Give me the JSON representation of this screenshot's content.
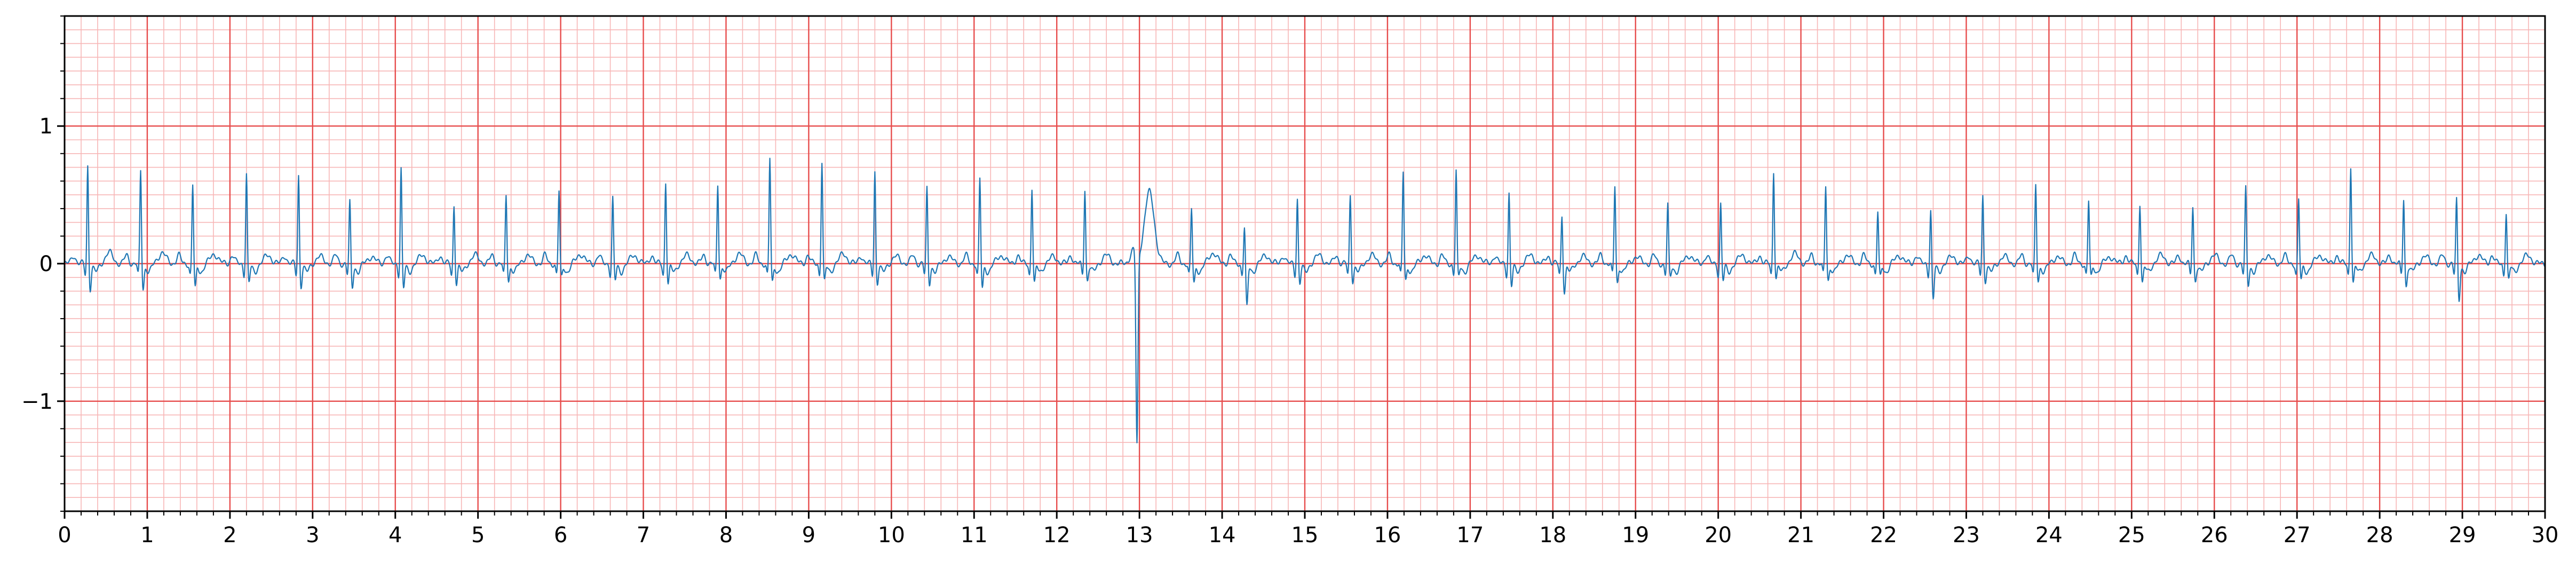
{
  "chart_data": {
    "type": "line",
    "title": "",
    "xlabel": "",
    "ylabel": "",
    "xlim": [
      0,
      30
    ],
    "ylim": [
      -1.8,
      1.8
    ],
    "x_ticks": [
      0,
      1,
      2,
      3,
      4,
      5,
      6,
      7,
      8,
      9,
      10,
      11,
      12,
      13,
      14,
      15,
      16,
      17,
      18,
      19,
      20,
      21,
      22,
      23,
      24,
      25,
      26,
      27,
      28,
      29,
      30
    ],
    "x_tick_labels": [
      "0",
      "1",
      "2",
      "3",
      "4",
      "5",
      "6",
      "7",
      "8",
      "9",
      "10",
      "11",
      "12",
      "13",
      "14",
      "15",
      "16",
      "17",
      "18",
      "19",
      "20",
      "21",
      "22",
      "23",
      "24",
      "25",
      "26",
      "27",
      "28",
      "29",
      "30"
    ],
    "y_ticks": [
      -1,
      0,
      1
    ],
    "y_tick_labels": [
      "−1",
      "0",
      "1"
    ],
    "grid": {
      "major": true,
      "minor": true
    },
    "colors": {
      "line": "#1f77b4",
      "major_grid": "#e74c4c",
      "minor_grid": "#f7b6b6"
    },
    "series": [
      {
        "beat_times": [
          0.28,
          0.92,
          1.55,
          2.2,
          2.83,
          3.45,
          4.07,
          4.71,
          5.34,
          5.98,
          6.63,
          7.27,
          7.9,
          8.53,
          9.16,
          9.8,
          10.43,
          11.07,
          11.7,
          12.34,
          12.98,
          13.63,
          14.27,
          14.91,
          15.55,
          16.19,
          16.83,
          17.47,
          18.11,
          18.75,
          19.39,
          20.03,
          20.67,
          21.3,
          21.93,
          22.57,
          23.2,
          23.84,
          24.48,
          25.1,
          25.74,
          26.38,
          27.02,
          27.65,
          28.29,
          28.93,
          29.53
        ],
        "r_peak_amplitudes": [
          0.72,
          0.68,
          0.58,
          0.66,
          0.65,
          0.45,
          0.7,
          0.43,
          0.5,
          0.53,
          0.48,
          0.6,
          0.58,
          0.77,
          0.75,
          0.68,
          0.55,
          0.62,
          0.56,
          0.55,
          -1.4,
          0.4,
          0.28,
          0.48,
          0.5,
          0.67,
          0.68,
          0.52,
          0.36,
          0.57,
          0.43,
          0.44,
          0.68,
          0.57,
          0.38,
          0.4,
          0.5,
          0.57,
          0.46,
          0.45,
          0.42,
          0.55,
          0.47,
          0.72,
          0.48,
          0.47,
          0.38
        ],
        "s_wave_amplitudes": [
          -0.18,
          -0.18,
          -0.18,
          -0.14,
          -0.16,
          -0.17,
          -0.18,
          -0.14,
          -0.12,
          -0.1,
          -0.12,
          -0.14,
          -0.1,
          -0.14,
          -0.13,
          -0.14,
          -0.14,
          -0.18,
          -0.14,
          -0.12,
          -0.12,
          -0.14,
          -0.32,
          -0.14,
          -0.12,
          -0.12,
          -0.1,
          -0.16,
          -0.2,
          -0.14,
          -0.1,
          -0.12,
          -0.1,
          -0.12,
          -0.1,
          -0.26,
          -0.12,
          -0.12,
          -0.1,
          -0.14,
          -0.12,
          -0.15,
          -0.12,
          -0.14,
          -0.16,
          -0.26,
          -0.12
        ],
        "t_wave_amplitudes": [
          0.08,
          0.08,
          0.07,
          0.06,
          0.05,
          0.05,
          0.06,
          0.06,
          0.06,
          0.07,
          0.06,
          0.06,
          0.07,
          0.07,
          0.07,
          0.05,
          0.05,
          0.06,
          0.05,
          0.06,
          0.52,
          0.08,
          0.06,
          0.06,
          0.06,
          0.06,
          0.06,
          0.06,
          0.05,
          0.05,
          0.06,
          0.06,
          0.07,
          0.06,
          0.06,
          0.05,
          0.05,
          0.05,
          0.05,
          0.06,
          0.06,
          0.06,
          0.06,
          0.06,
          0.05,
          0.06,
          0.06
        ]
      }
    ]
  }
}
